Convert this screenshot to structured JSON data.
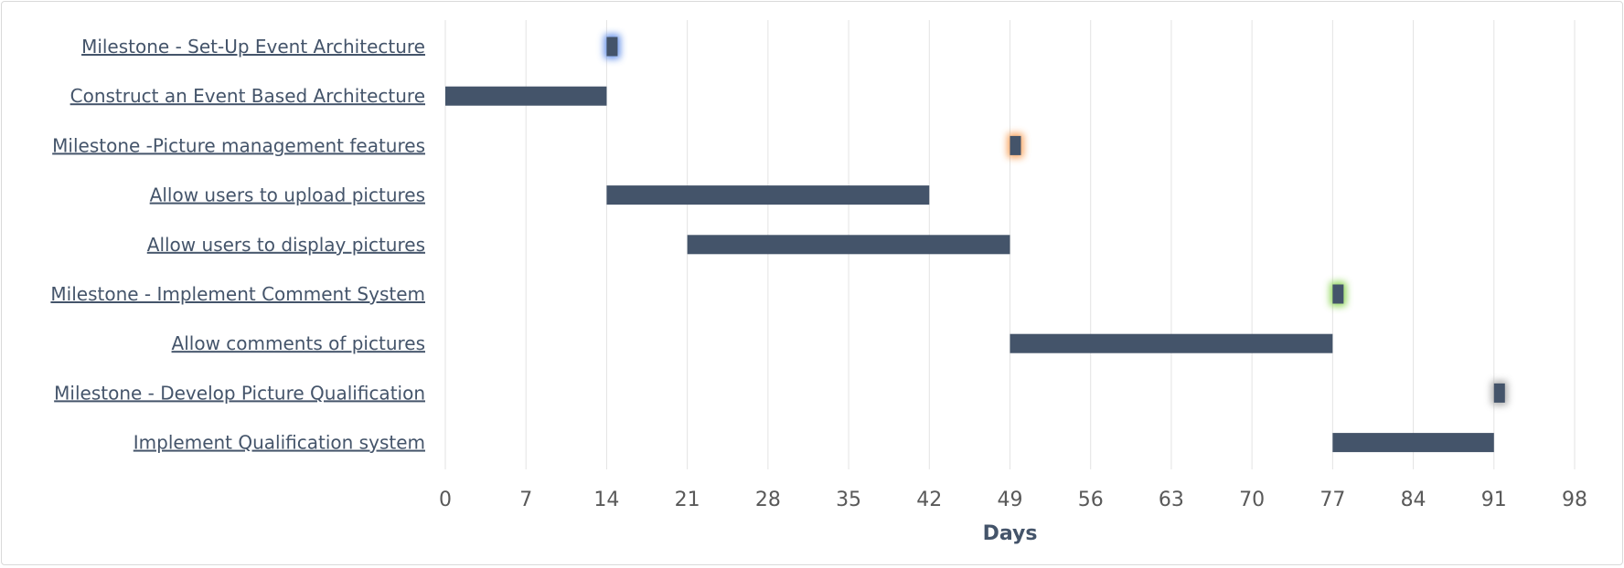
{
  "chart_data": {
    "type": "bar",
    "orientation": "horizontal",
    "subtype": "gantt",
    "title": "",
    "xlabel": "Days",
    "ylabel": "",
    "xlim": [
      0,
      98
    ],
    "xticks": [
      0,
      7,
      14,
      21,
      28,
      35,
      42,
      49,
      56,
      63,
      70,
      77,
      84,
      91,
      98
    ],
    "grid": "vertical",
    "bar_color": "#44546a",
    "tasks": [
      {
        "label": "Milestone - Set-Up Event Architecture",
        "start": 14,
        "end": 15,
        "milestone": true,
        "glow": "#4f81e6"
      },
      {
        "label": "Construct an Event Based Architecture",
        "start": 0,
        "end": 14,
        "milestone": false
      },
      {
        "label": "Milestone -Picture management features",
        "start": 49,
        "end": 50,
        "milestone": true,
        "glow": "#f79646"
      },
      {
        "label": "Allow users to upload pictures",
        "start": 14,
        "end": 42,
        "milestone": false
      },
      {
        "label": "Allow users to display pictures",
        "start": 21,
        "end": 49,
        "milestone": false
      },
      {
        "label": "Milestone - Implement Comment System",
        "start": 77,
        "end": 78,
        "milestone": true,
        "glow": "#7dcf3d"
      },
      {
        "label": "Allow comments of pictures",
        "start": 49,
        "end": 77,
        "milestone": false
      },
      {
        "label": "Milestone - Develop Picture Qualification",
        "start": 91,
        "end": 92,
        "milestone": true,
        "glow": "#a0a0a0"
      },
      {
        "label": "Implement Qualification system",
        "start": 77,
        "end": 91,
        "milestone": false
      }
    ]
  }
}
